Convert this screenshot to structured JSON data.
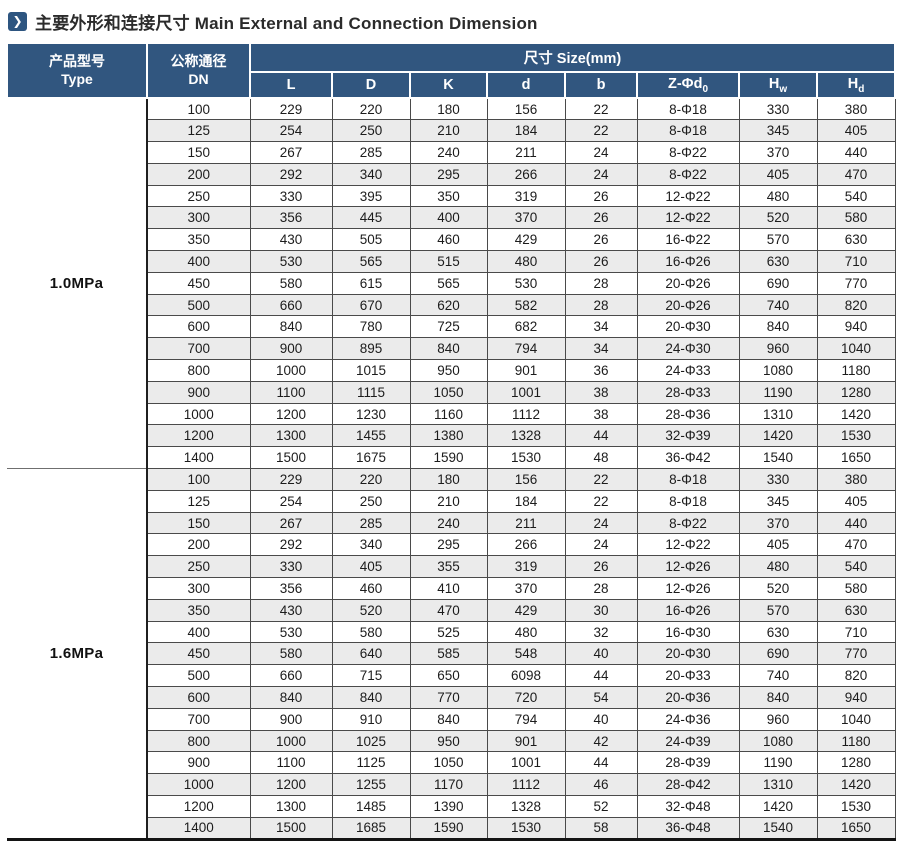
{
  "title": {
    "icon": "❯",
    "text": "主要外形和连接尺寸 Main External and Connection Dimension"
  },
  "colors": {
    "header_bg": "#31567F",
    "row_alt": "#EBEBEB",
    "icon_bg": "#2D5580"
  },
  "table": {
    "type_header_zh": "产品型号",
    "type_header_en": "Type",
    "dn_header_zh": "公称通径",
    "dn_header_en": "DN",
    "size_header": "尺寸 Size(mm)",
    "size_columns": [
      {
        "main": "L",
        "sub": ""
      },
      {
        "main": "D",
        "sub": ""
      },
      {
        "main": "K",
        "sub": ""
      },
      {
        "main": "d",
        "sub": ""
      },
      {
        "main": "b",
        "sub": ""
      },
      {
        "main": "Z-Φd",
        "sub": "0"
      },
      {
        "main": "H",
        "sub": "w"
      },
      {
        "main": "H",
        "sub": "d"
      }
    ],
    "sections": [
      {
        "label": "1.0MPa",
        "rows": [
          [
            "100",
            "229",
            "220",
            "180",
            "156",
            "22",
            "8-Φ18",
            "330",
            "380"
          ],
          [
            "125",
            "254",
            "250",
            "210",
            "184",
            "22",
            "8-Φ18",
            "345",
            "405"
          ],
          [
            "150",
            "267",
            "285",
            "240",
            "211",
            "24",
            "8-Φ22",
            "370",
            "440"
          ],
          [
            "200",
            "292",
            "340",
            "295",
            "266",
            "24",
            "8-Φ22",
            "405",
            "470"
          ],
          [
            "250",
            "330",
            "395",
            "350",
            "319",
            "26",
            "12-Φ22",
            "480",
            "540"
          ],
          [
            "300",
            "356",
            "445",
            "400",
            "370",
            "26",
            "12-Φ22",
            "520",
            "580"
          ],
          [
            "350",
            "430",
            "505",
            "460",
            "429",
            "26",
            "16-Φ22",
            "570",
            "630"
          ],
          [
            "400",
            "530",
            "565",
            "515",
            "480",
            "26",
            "16-Φ26",
            "630",
            "710"
          ],
          [
            "450",
            "580",
            "615",
            "565",
            "530",
            "28",
            "20-Φ26",
            "690",
            "770"
          ],
          [
            "500",
            "660",
            "670",
            "620",
            "582",
            "28",
            "20-Φ26",
            "740",
            "820"
          ],
          [
            "600",
            "840",
            "780",
            "725",
            "682",
            "34",
            "20-Φ30",
            "840",
            "940"
          ],
          [
            "700",
            "900",
            "895",
            "840",
            "794",
            "34",
            "24-Φ30",
            "960",
            "1040"
          ],
          [
            "800",
            "1000",
            "1015",
            "950",
            "901",
            "36",
            "24-Φ33",
            "1080",
            "1180"
          ],
          [
            "900",
            "1100",
            "1115",
            "1050",
            "1001",
            "38",
            "28-Φ33",
            "1190",
            "1280"
          ],
          [
            "1000",
            "1200",
            "1230",
            "1160",
            "1112",
            "38",
            "28-Φ36",
            "1310",
            "1420"
          ],
          [
            "1200",
            "1300",
            "1455",
            "1380",
            "1328",
            "44",
            "32-Φ39",
            "1420",
            "1530"
          ],
          [
            "1400",
            "1500",
            "1675",
            "1590",
            "1530",
            "48",
            "36-Φ42",
            "1540",
            "1650"
          ]
        ]
      },
      {
        "label": "1.6MPa",
        "rows": [
          [
            "100",
            "229",
            "220",
            "180",
            "156",
            "22",
            "8-Φ18",
            "330",
            "380"
          ],
          [
            "125",
            "254",
            "250",
            "210",
            "184",
            "22",
            "8-Φ18",
            "345",
            "405"
          ],
          [
            "150",
            "267",
            "285",
            "240",
            "211",
            "24",
            "8-Φ22",
            "370",
            "440"
          ],
          [
            "200",
            "292",
            "340",
            "295",
            "266",
            "24",
            "12-Φ22",
            "405",
            "470"
          ],
          [
            "250",
            "330",
            "405",
            "355",
            "319",
            "26",
            "12-Φ26",
            "480",
            "540"
          ],
          [
            "300",
            "356",
            "460",
            "410",
            "370",
            "28",
            "12-Φ26",
            "520",
            "580"
          ],
          [
            "350",
            "430",
            "520",
            "470",
            "429",
            "30",
            "16-Φ26",
            "570",
            "630"
          ],
          [
            "400",
            "530",
            "580",
            "525",
            "480",
            "32",
            "16-Φ30",
            "630",
            "710"
          ],
          [
            "450",
            "580",
            "640",
            "585",
            "548",
            "40",
            "20-Φ30",
            "690",
            "770"
          ],
          [
            "500",
            "660",
            "715",
            "650",
            "6098",
            "44",
            "20-Φ33",
            "740",
            "820"
          ],
          [
            "600",
            "840",
            "840",
            "770",
            "720",
            "54",
            "20-Φ36",
            "840",
            "940"
          ],
          [
            "700",
            "900",
            "910",
            "840",
            "794",
            "40",
            "24-Φ36",
            "960",
            "1040"
          ],
          [
            "800",
            "1000",
            "1025",
            "950",
            "901",
            "42",
            "24-Φ39",
            "1080",
            "1180"
          ],
          [
            "900",
            "1100",
            "1125",
            "1050",
            "1001",
            "44",
            "28-Φ39",
            "1190",
            "1280"
          ],
          [
            "1000",
            "1200",
            "1255",
            "1170",
            "1112",
            "46",
            "28-Φ42",
            "1310",
            "1420"
          ],
          [
            "1200",
            "1300",
            "1485",
            "1390",
            "1328",
            "52",
            "32-Φ48",
            "1420",
            "1530"
          ],
          [
            "1400",
            "1500",
            "1685",
            "1590",
            "1530",
            "58",
            "36-Φ48",
            "1540",
            "1650"
          ]
        ]
      }
    ]
  }
}
